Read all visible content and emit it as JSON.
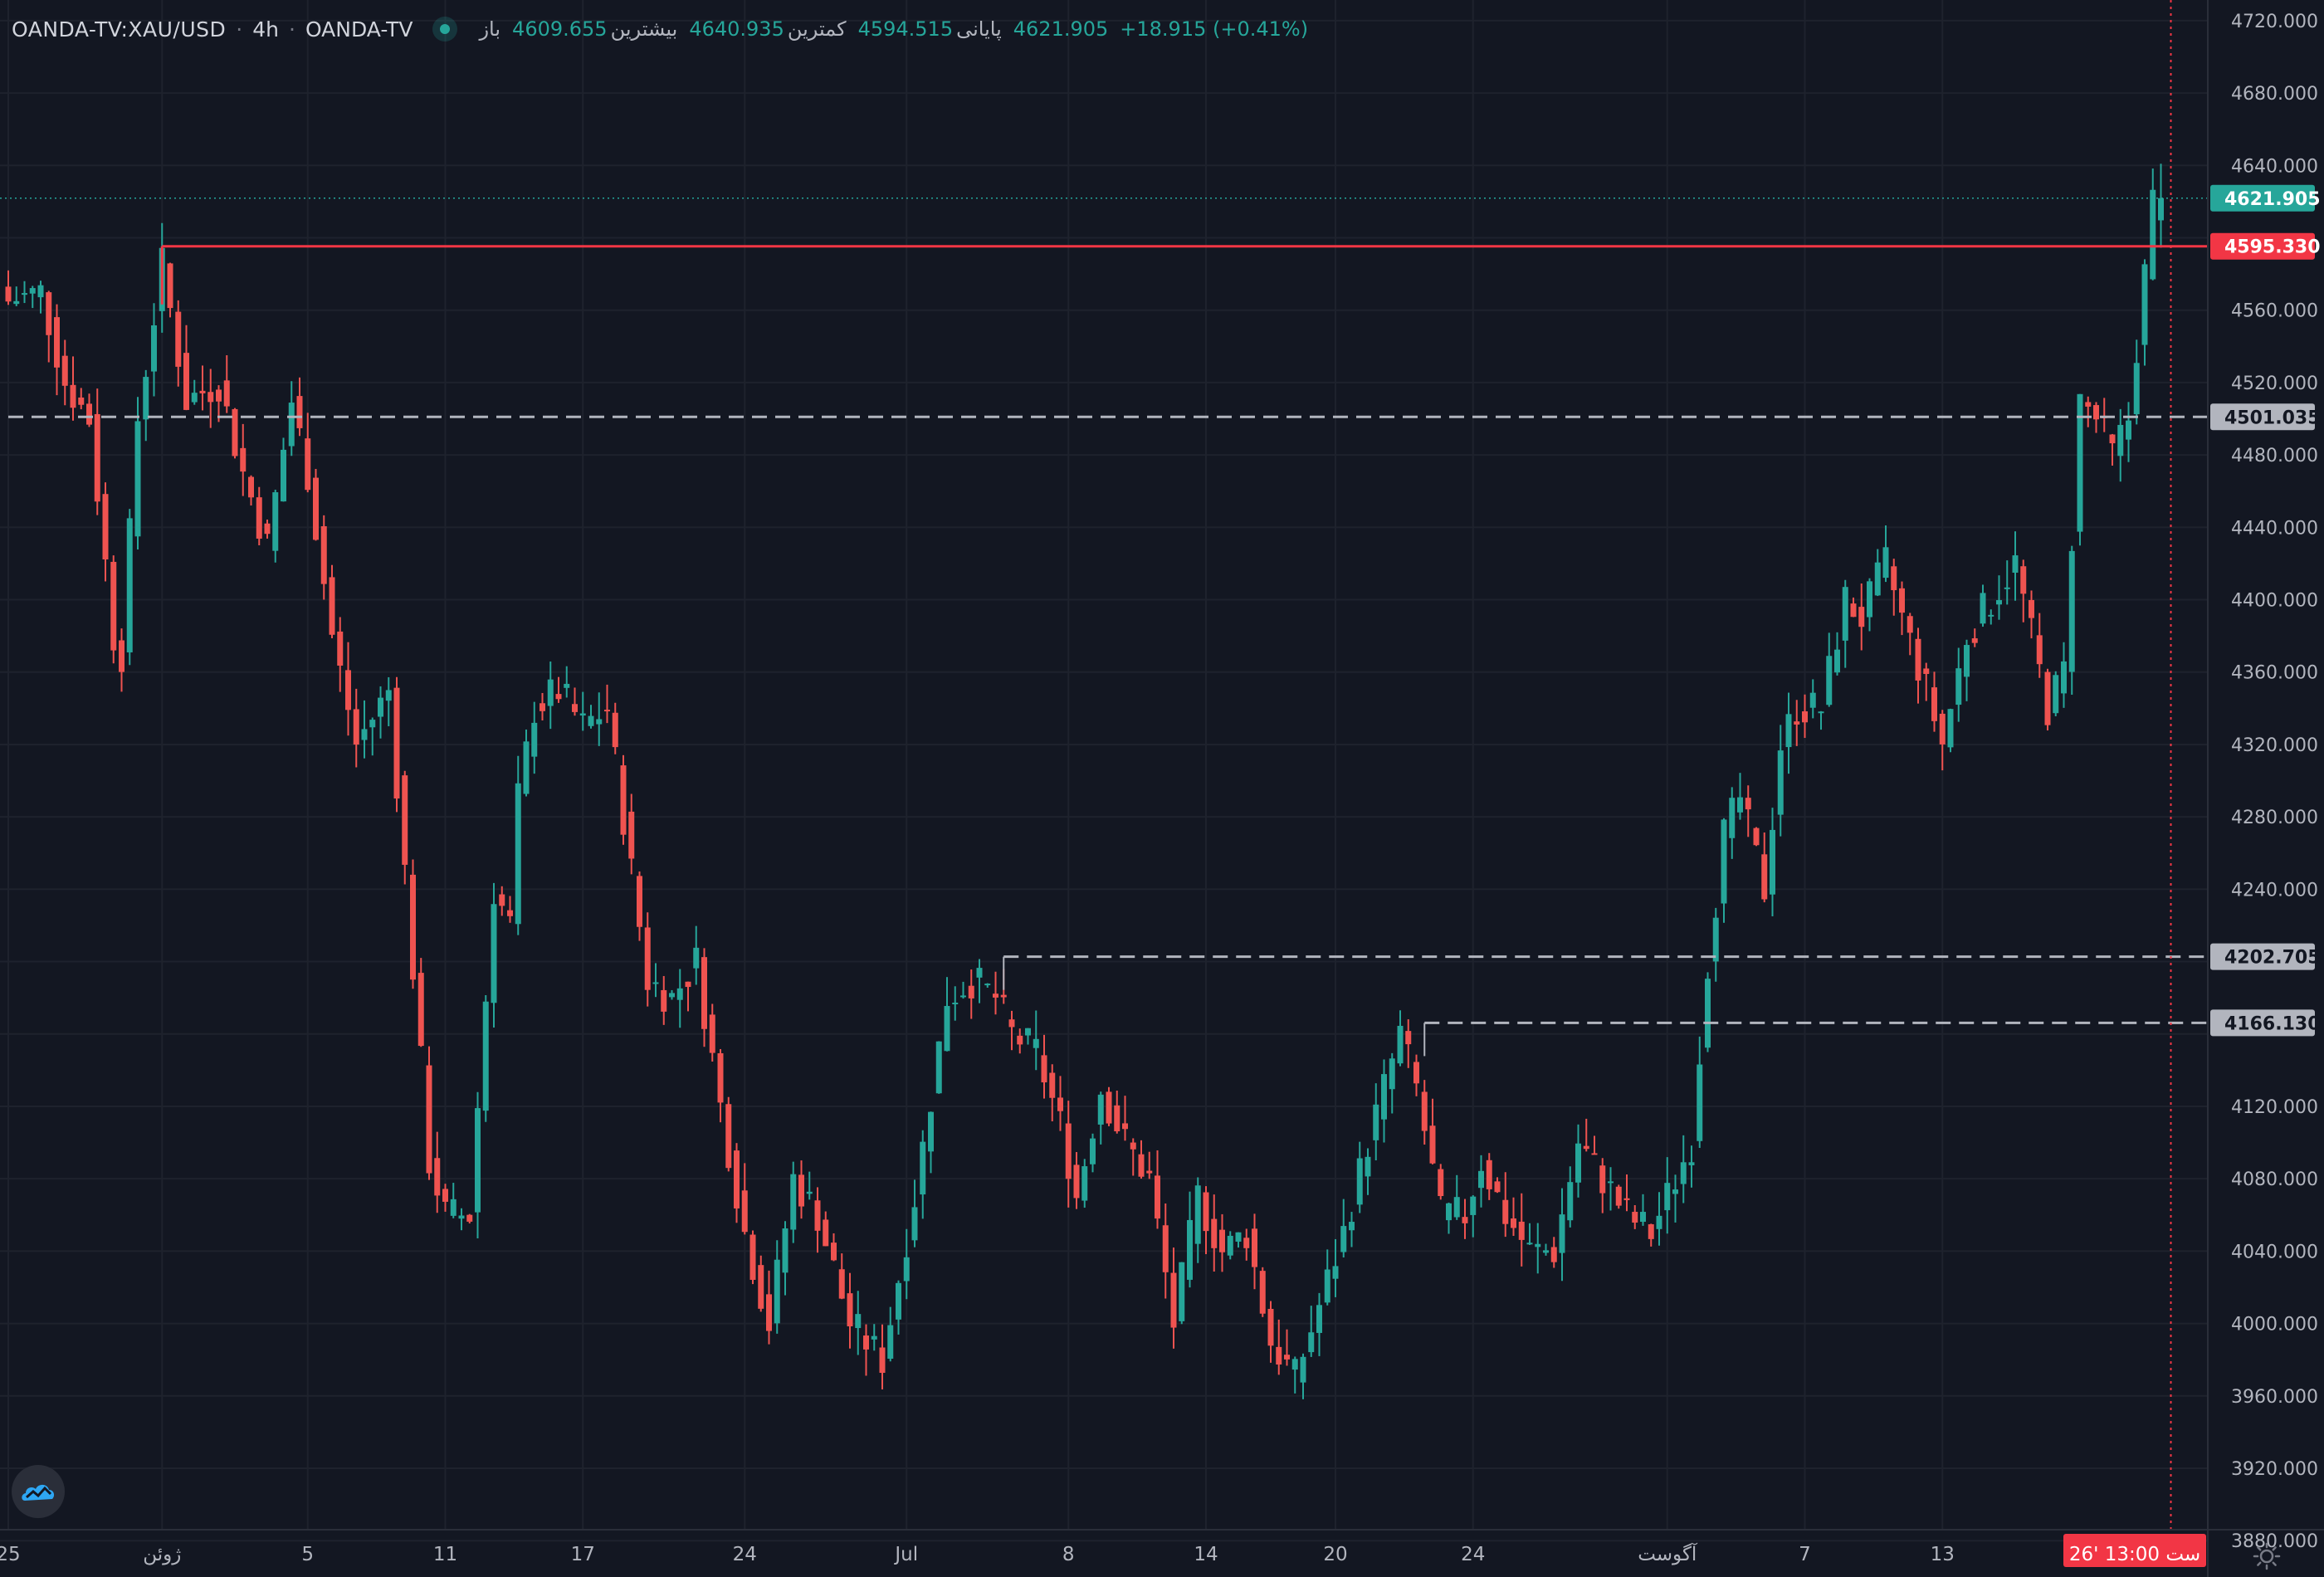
{
  "header": {
    "symbol": "OANDA-TV:XAU/USD",
    "timeframe": "4h",
    "source": "OANDA-TV",
    "open_label": "باز",
    "open_value": "4609.655",
    "high_label": "بیشترین",
    "high_value": "4640.935",
    "low_label": "کمترین",
    "low_value": "4594.515",
    "close_label": "پایانی",
    "close_value": "4621.905",
    "change": "+18.915 (+0.41%)"
  },
  "colors": {
    "background": "#131722",
    "grid": "#1e222d",
    "up": "#26a69a",
    "down": "#ef5350",
    "resistance": "#f23645",
    "dashed": "#b2b5be"
  },
  "icons": {
    "logo": "tradingview-cloud-icon",
    "settings": "gear-icon"
  },
  "chart_data": {
    "type": "candlestick",
    "y_range": [
      3870,
      4725
    ],
    "y_ticks": [
      {
        "v": 4720,
        "t": "4720.000"
      },
      {
        "v": 4680,
        "t": "4680.000"
      },
      {
        "v": 4640,
        "t": "4640.000"
      },
      {
        "v": 4600,
        "t": "4600.000",
        "hidden": true
      },
      {
        "v": 4560,
        "t": "4560.000"
      },
      {
        "v": 4520,
        "t": "4520.000"
      },
      {
        "v": 4480,
        "t": "4480.000"
      },
      {
        "v": 4440,
        "t": "4440.000"
      },
      {
        "v": 4400,
        "t": "4400.000"
      },
      {
        "v": 4360,
        "t": "4360.000"
      },
      {
        "v": 4320,
        "t": "4320.000"
      },
      {
        "v": 4280,
        "t": "4280.000"
      },
      {
        "v": 4240,
        "t": "4240.000"
      },
      {
        "v": 4200,
        "t": "4200.000",
        "hidden": true
      },
      {
        "v": 4160,
        "t": "4160.000",
        "hidden": true
      },
      {
        "v": 4120,
        "t": "4120.000"
      },
      {
        "v": 4080,
        "t": "4080.000"
      },
      {
        "v": 4040,
        "t": "4040.000"
      },
      {
        "v": 4000,
        "t": "4000.000"
      },
      {
        "v": 3960,
        "t": "3960.000"
      },
      {
        "v": 3920,
        "t": "3920.000"
      },
      {
        "v": 3880,
        "t": "3880.000"
      }
    ],
    "x_ticks": [
      {
        "i": 0,
        "t": "25"
      },
      {
        "i": 19,
        "t": "ژوئن"
      },
      {
        "i": 37,
        "t": "5"
      },
      {
        "i": 54,
        "t": "11"
      },
      {
        "i": 71,
        "t": "17"
      },
      {
        "i": 91,
        "t": "24"
      },
      {
        "i": 111,
        "t": "Jul"
      },
      {
        "i": 131,
        "t": "8"
      },
      {
        "i": 148,
        "t": "14"
      },
      {
        "i": 164,
        "t": "20"
      },
      {
        "i": 181,
        "t": "24"
      },
      {
        "i": 205,
        "t": "آگوست"
      },
      {
        "i": 222,
        "t": "7"
      },
      {
        "i": 239,
        "t": "13"
      }
    ],
    "cursor_time_label": "26' ست  13:00",
    "cursor_index": 266,
    "price_labels": [
      {
        "value": 4621.905,
        "text": "4621.905",
        "kind": "last"
      },
      {
        "value": 4595.33,
        "text": "4595.330",
        "kind": "resistance"
      },
      {
        "value": 4501.035,
        "text": "4501.035",
        "kind": "dashed"
      },
      {
        "value": 4202.705,
        "text": "4202.705",
        "kind": "dashed"
      },
      {
        "value": 4166.13,
        "text": "4166.130",
        "kind": "dashed"
      }
    ],
    "horizontal_lines": [
      {
        "value": 4595.33,
        "from_index": 19,
        "style": "solid"
      },
      {
        "value": 4501.035,
        "from_index": 0,
        "style": "dashed"
      },
      {
        "value": 4202.705,
        "from_index": 123,
        "style": "dashed"
      },
      {
        "value": 4166.13,
        "from_index": 175,
        "style": "dashed"
      }
    ],
    "last_price_line": 4621.905,
    "series": [
      {
        "name": "XAU/USD",
        "close_waypoints": [
          [
            0,
            4565
          ],
          [
            4,
            4570
          ],
          [
            7,
            4520
          ],
          [
            10,
            4500
          ],
          [
            13,
            4380
          ],
          [
            14,
            4370
          ],
          [
            16,
            4500
          ],
          [
            19,
            4585
          ],
          [
            22,
            4510
          ],
          [
            26,
            4520
          ],
          [
            29,
            4470
          ],
          [
            32,
            4430
          ],
          [
            35,
            4510
          ],
          [
            37,
            4470
          ],
          [
            40,
            4380
          ],
          [
            43,
            4320
          ],
          [
            47,
            4350
          ],
          [
            49,
            4250
          ],
          [
            52,
            4090
          ],
          [
            54,
            4060
          ],
          [
            57,
            4060
          ],
          [
            60,
            4240
          ],
          [
            62,
            4220
          ],
          [
            63,
            4290
          ],
          [
            65,
            4340
          ],
          [
            68,
            4350
          ],
          [
            71,
            4330
          ],
          [
            74,
            4340
          ],
          [
            76,
            4280
          ],
          [
            79,
            4190
          ],
          [
            82,
            4180
          ],
          [
            85,
            4200
          ],
          [
            88,
            4120
          ],
          [
            91,
            4050
          ],
          [
            94,
            4000
          ],
          [
            97,
            4080
          ],
          [
            100,
            4060
          ],
          [
            104,
            4000
          ],
          [
            108,
            3980
          ],
          [
            112,
            4070
          ],
          [
            116,
            4180
          ],
          [
            119,
            4190
          ],
          [
            122,
            4180
          ],
          [
            124,
            4160
          ],
          [
            127,
            4150
          ],
          [
            130,
            4110
          ],
          [
            132,
            4070
          ],
          [
            135,
            4130
          ],
          [
            138,
            4100
          ],
          [
            141,
            4080
          ],
          [
            144,
            4000
          ],
          [
            147,
            4070
          ],
          [
            150,
            4040
          ],
          [
            153,
            4050
          ],
          [
            156,
            3990
          ],
          [
            159,
            3970
          ],
          [
            162,
            4010
          ],
          [
            165,
            4050
          ],
          [
            168,
            4100
          ],
          [
            172,
            4160
          ],
          [
            174,
            4130
          ],
          [
            177,
            4060
          ],
          [
            180,
            4060
          ],
          [
            182,
            4090
          ],
          [
            185,
            4060
          ],
          [
            188,
            4040
          ],
          [
            191,
            4040
          ],
          [
            194,
            4100
          ],
          [
            197,
            4080
          ],
          [
            200,
            4060
          ],
          [
            203,
            4050
          ],
          [
            206,
            4080
          ],
          [
            208,
            4100
          ],
          [
            210,
            4200
          ],
          [
            212,
            4270
          ],
          [
            214,
            4290
          ],
          [
            217,
            4240
          ],
          [
            219,
            4320
          ],
          [
            221,
            4340
          ],
          [
            224,
            4340
          ],
          [
            227,
            4400
          ],
          [
            229,
            4390
          ],
          [
            232,
            4420
          ],
          [
            234,
            4390
          ],
          [
            237,
            4350
          ],
          [
            239,
            4320
          ],
          [
            242,
            4380
          ],
          [
            245,
            4400
          ],
          [
            248,
            4420
          ],
          [
            250,
            4380
          ],
          [
            252,
            4340
          ],
          [
            254,
            4360
          ],
          [
            256,
            4510
          ],
          [
            258,
            4500
          ],
          [
            260,
            4480
          ],
          [
            262,
            4500
          ],
          [
            264,
            4580
          ],
          [
            265,
            4620
          ],
          [
            266,
            4621.905
          ]
        ]
      }
    ]
  }
}
